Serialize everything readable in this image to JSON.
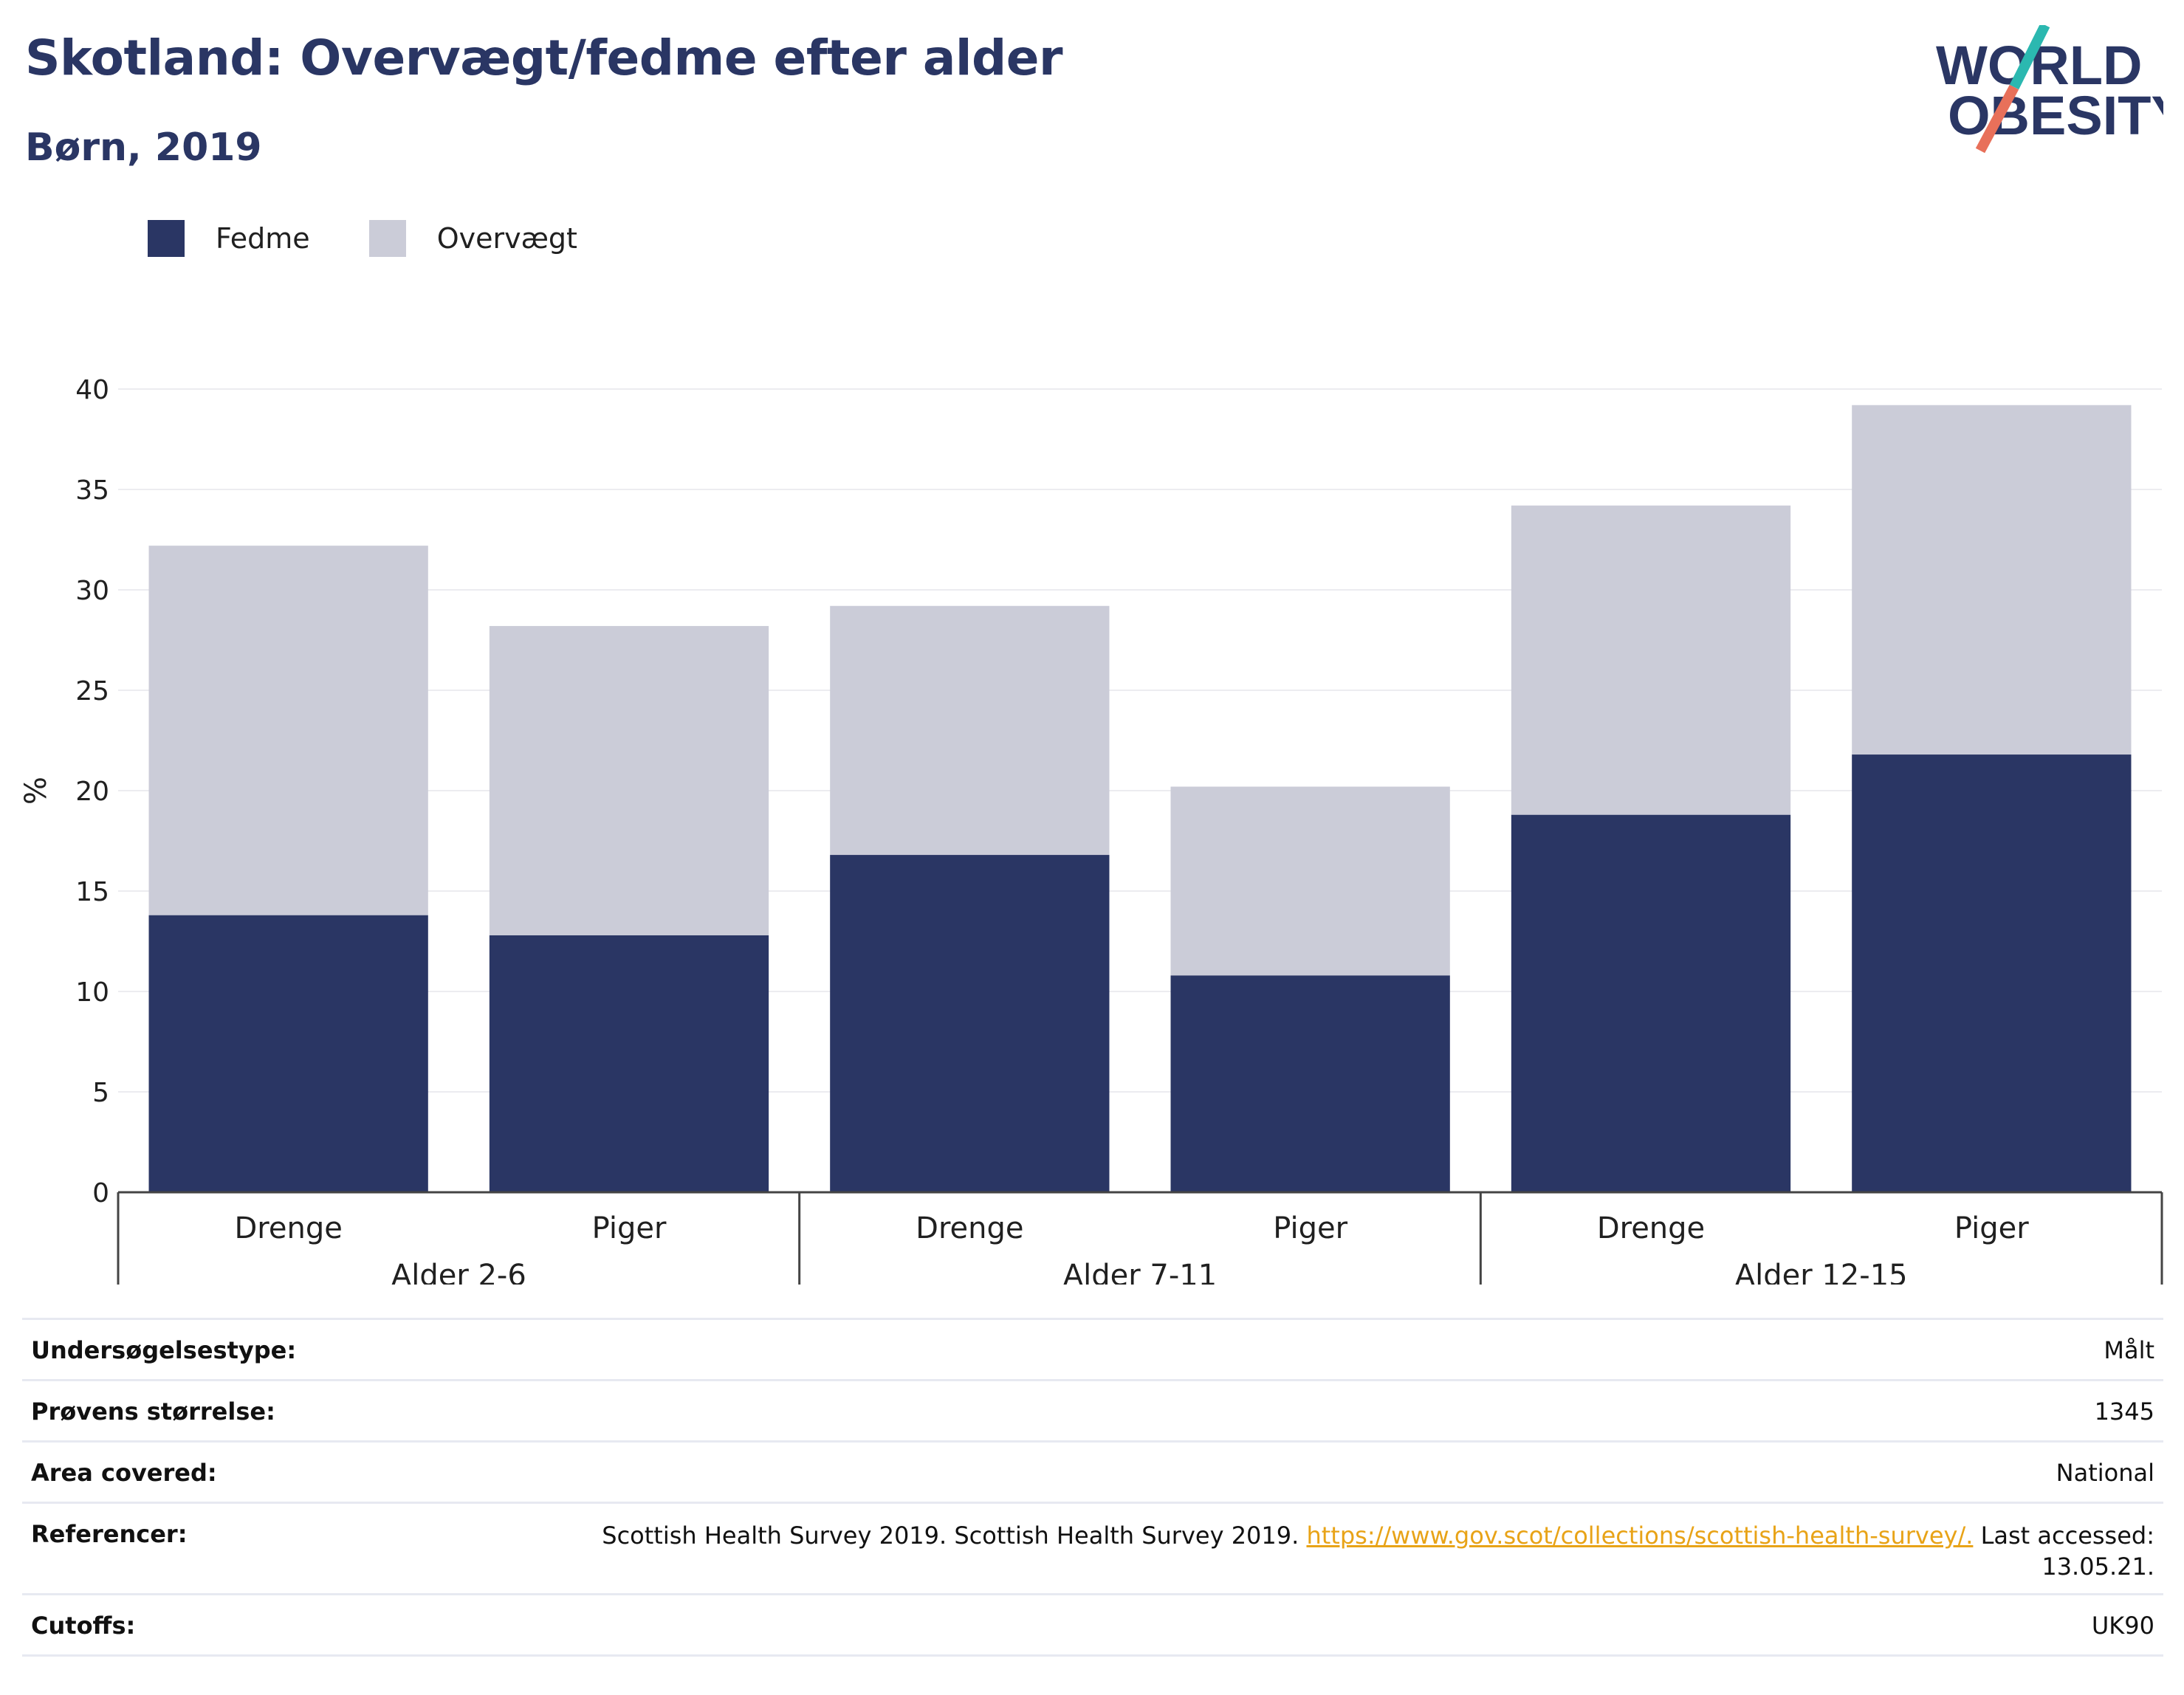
{
  "header": {
    "title": "Skotland: Overvægt/fedme efter alder",
    "subtitle": "Børn, 2019"
  },
  "logo": {
    "line1": "WORLD",
    "line2": "OBESITY",
    "colors": {
      "text": "#2a3664",
      "teal": "#2bb8b0",
      "coral": "#e8705a"
    }
  },
  "chart_data": {
    "type": "bar",
    "stacked": true,
    "groups": [
      {
        "label": "Alder 2-6",
        "categories": [
          "Drenge",
          "Piger"
        ]
      },
      {
        "label": "Alder 7-11",
        "categories": [
          "Drenge",
          "Piger"
        ]
      },
      {
        "label": "Alder 12-15",
        "categories": [
          "Drenge",
          "Piger"
        ]
      }
    ],
    "series": [
      {
        "name": "Fedme",
        "color": "#2a3664",
        "values": [
          13.8,
          12.8,
          16.8,
          10.8,
          18.8,
          21.8
        ]
      },
      {
        "name": "Overvægt",
        "color": "#cbccd8",
        "values": [
          18.4,
          15.4,
          12.4,
          9.4,
          15.4,
          17.4
        ]
      }
    ],
    "ylabel": "%",
    "ylim": [
      0,
      40
    ],
    "yticks": [
      0,
      5,
      10,
      15,
      20,
      25,
      30,
      35,
      40
    ],
    "grid": true,
    "legend_position": "top-left"
  },
  "meta": {
    "rows": [
      {
        "key": "Undersøgelsestype:",
        "value": "Målt"
      },
      {
        "key": "Prøvens størrelse:",
        "value": "1345"
      },
      {
        "key": "Area covered:",
        "value": "National"
      },
      {
        "key": "Referencer:",
        "value_pre": "Scottish Health Survey 2019. Scottish Health Survey 2019. ",
        "link": "https://www.gov.scot/collections/scottish-health-survey/.",
        "value_post": " Last accessed: 13.05.21."
      },
      {
        "key": "Cutoffs:",
        "value": "UK90"
      }
    ]
  }
}
